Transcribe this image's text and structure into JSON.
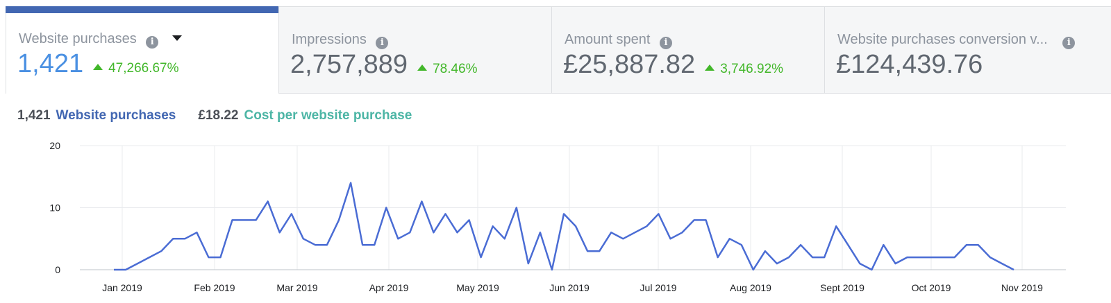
{
  "tabs": [
    {
      "label": "Website purchases",
      "value": "1,421",
      "delta": "47,266.67%",
      "active": true,
      "has_dropdown": true
    },
    {
      "label": "Impressions",
      "value": "2,757,889",
      "delta": "78.46%"
    },
    {
      "label": "Amount spent",
      "value": "£25,887.82",
      "delta": "3,746.92%"
    },
    {
      "label": "Website purchases conversion v...",
      "value": "£124,439.76",
      "delta": ""
    }
  ],
  "summary": {
    "purchases_value": "1,421",
    "purchases_label": "Website purchases",
    "cost_value": "£18.22",
    "cost_label": "Cost per website purchase"
  },
  "colors": {
    "accent": "#4267b2",
    "line": "#4a6cd4",
    "positive": "#42b72a",
    "teal": "#4cb5a5"
  },
  "chart_data": {
    "type": "line",
    "title": "",
    "ylim": [
      0,
      20
    ],
    "y_ticks": [
      0,
      10,
      20
    ],
    "x_ticks": [
      "Jan 2019",
      "Feb 2019",
      "Mar 2019",
      "Apr 2019",
      "May 2019",
      "Jun 2019",
      "Jul 2019",
      "Aug 2019",
      "Sept 2019",
      "Oct 2019",
      "Nov 2019"
    ],
    "grid": true,
    "series": [
      {
        "name": "Website purchases",
        "values": [
          0,
          0,
          1,
          2,
          3,
          5,
          5,
          6,
          2,
          2,
          8,
          8,
          8,
          11,
          6,
          9,
          5,
          4,
          4,
          8,
          14,
          4,
          4,
          10,
          5,
          6,
          11,
          6,
          9,
          6,
          8,
          2,
          7,
          5,
          10,
          1,
          6,
          0,
          9,
          7,
          3,
          3,
          6,
          5,
          6,
          7,
          9,
          5,
          6,
          8,
          8,
          2,
          5,
          4,
          0,
          3,
          1,
          2,
          4,
          2,
          2,
          7,
          4,
          1,
          0,
          4,
          1,
          2,
          2,
          2,
          2,
          2,
          4,
          4,
          2,
          1,
          0
        ]
      }
    ]
  }
}
